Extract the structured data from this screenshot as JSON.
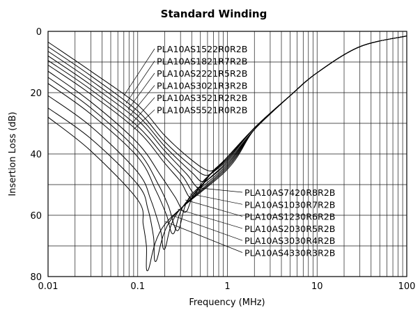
{
  "chart_data": {
    "type": "line",
    "title": "Standard Winding",
    "xlabel": "Frequency (MHz)",
    "ylabel": "Insertion Loss (dB)",
    "xscale": "log",
    "xlim": [
      0.01,
      100
    ],
    "ylim": [
      80,
      0
    ],
    "y_inverted": true,
    "x_ticks": [
      {
        "v": 0.01,
        "label": "0.01"
      },
      {
        "v": 0.1,
        "label": "0.1"
      },
      {
        "v": 1,
        "label": "1"
      },
      {
        "v": 10,
        "label": "10"
      },
      {
        "v": 100,
        "label": "100"
      }
    ],
    "y_ticks": [
      {
        "v": 0,
        "label": "0"
      },
      {
        "v": 20,
        "label": "20"
      },
      {
        "v": 40,
        "label": "40"
      },
      {
        "v": 60,
        "label": "60"
      },
      {
        "v": 80,
        "label": "80"
      }
    ],
    "grid": true,
    "series": [
      {
        "name": "PLA10AS1522R0R2B",
        "x": [
          0.01,
          0.03,
          0.1,
          0.2,
          0.4,
          0.62,
          0.8,
          1,
          2,
          5,
          10,
          30,
          100
        ],
        "y": [
          3.5,
          13,
          24,
          34,
          42,
          45.5,
          44,
          41,
          31.5,
          21,
          13.5,
          5,
          1.5
        ]
      },
      {
        "name": "PLA10AS1821R7R2B",
        "x": [
          0.01,
          0.03,
          0.1,
          0.2,
          0.4,
          0.58,
          0.75,
          1,
          2,
          5,
          10,
          30,
          100
        ],
        "y": [
          5,
          14.5,
          26,
          36,
          44,
          47,
          44.5,
          41,
          31.5,
          21,
          13.5,
          5,
          1.5
        ]
      },
      {
        "name": "PLA10AS2221R5R2B",
        "x": [
          0.01,
          0.03,
          0.1,
          0.2,
          0.4,
          0.53,
          0.7,
          1,
          2,
          5,
          10,
          30,
          100
        ],
        "y": [
          6.5,
          16,
          27.5,
          37.5,
          46,
          49,
          45.5,
          41.5,
          31.5,
          21,
          13.5,
          5,
          1.5
        ]
      },
      {
        "name": "PLA10AS3021R3R2B",
        "x": [
          0.01,
          0.03,
          0.1,
          0.2,
          0.35,
          0.48,
          0.65,
          1,
          2,
          5,
          10,
          30,
          100
        ],
        "y": [
          8,
          17.5,
          29,
          39,
          46.5,
          51,
          46.5,
          41.5,
          31.5,
          21,
          13.5,
          5,
          1.5
        ]
      },
      {
        "name": "PLA10AS3521R2R2B",
        "x": [
          0.01,
          0.03,
          0.1,
          0.2,
          0.32,
          0.44,
          0.6,
          1,
          2,
          5,
          10,
          30,
          100
        ],
        "y": [
          9.5,
          19,
          31,
          41,
          47.5,
          53,
          47.5,
          42,
          31.5,
          21,
          13.5,
          5,
          1.5
        ]
      },
      {
        "name": "PLA10AS5521R0R2B",
        "x": [
          0.01,
          0.03,
          0.1,
          0.2,
          0.3,
          0.4,
          0.55,
          1,
          2,
          5,
          10,
          30,
          100
        ],
        "y": [
          11,
          20.5,
          32.5,
          43,
          49,
          54.5,
          48.5,
          42,
          31.5,
          21,
          13.5,
          5,
          1.5
        ]
      },
      {
        "name": "PLA10AS7420R8R2B",
        "x": [
          0.01,
          0.03,
          0.1,
          0.18,
          0.26,
          0.34,
          0.45,
          1,
          2,
          5,
          10,
          30,
          100
        ],
        "y": [
          13,
          23,
          36.5,
          47,
          54,
          59,
          52,
          42.5,
          32,
          21,
          13.5,
          5,
          1.5
        ]
      },
      {
        "name": "PLA10AS1030R7R2B",
        "x": [
          0.01,
          0.03,
          0.1,
          0.17,
          0.22,
          0.28,
          0.38,
          1,
          2,
          5,
          10,
          30,
          100
        ],
        "y": [
          15,
          25,
          39,
          50,
          57,
          65,
          54,
          43,
          32,
          21,
          13.5,
          5,
          1.5
        ]
      },
      {
        "name": "PLA10AS1230R6R2B",
        "x": [
          0.01,
          0.03,
          0.1,
          0.16,
          0.21,
          0.25,
          0.34,
          1,
          2,
          5,
          10,
          30,
          100
        ],
        "y": [
          17,
          27,
          41,
          52,
          60,
          66,
          56,
          43.5,
          32,
          21,
          13.5,
          5,
          1.5
        ]
      },
      {
        "name": "PLA10AS2030R5R2B",
        "x": [
          0.01,
          0.03,
          0.1,
          0.14,
          0.18,
          0.2,
          0.28,
          1,
          2,
          5,
          10,
          30,
          100
        ],
        "y": [
          21,
          31,
          46,
          55,
          65,
          71,
          59,
          44,
          32,
          21,
          13.5,
          5,
          1.5
        ]
      },
      {
        "name": "PLA10AS3030R4R2B",
        "x": [
          0.01,
          0.03,
          0.1,
          0.13,
          0.15,
          0.16,
          0.24,
          1,
          2,
          5,
          10,
          30,
          100
        ],
        "y": [
          25,
          35,
          50,
          58,
          67,
          75,
          61,
          44.5,
          32,
          21,
          13.5,
          5,
          1.5
        ]
      },
      {
        "name": "PLA10AS4330R3R2B",
        "x": [
          0.01,
          0.03,
          0.1,
          0.115,
          0.125,
          0.13,
          0.2,
          1,
          2,
          5,
          10,
          30,
          100
        ],
        "y": [
          28,
          39,
          55,
          63,
          70,
          78,
          63,
          45,
          32,
          21,
          13.5,
          5,
          1.5
        ]
      }
    ]
  }
}
